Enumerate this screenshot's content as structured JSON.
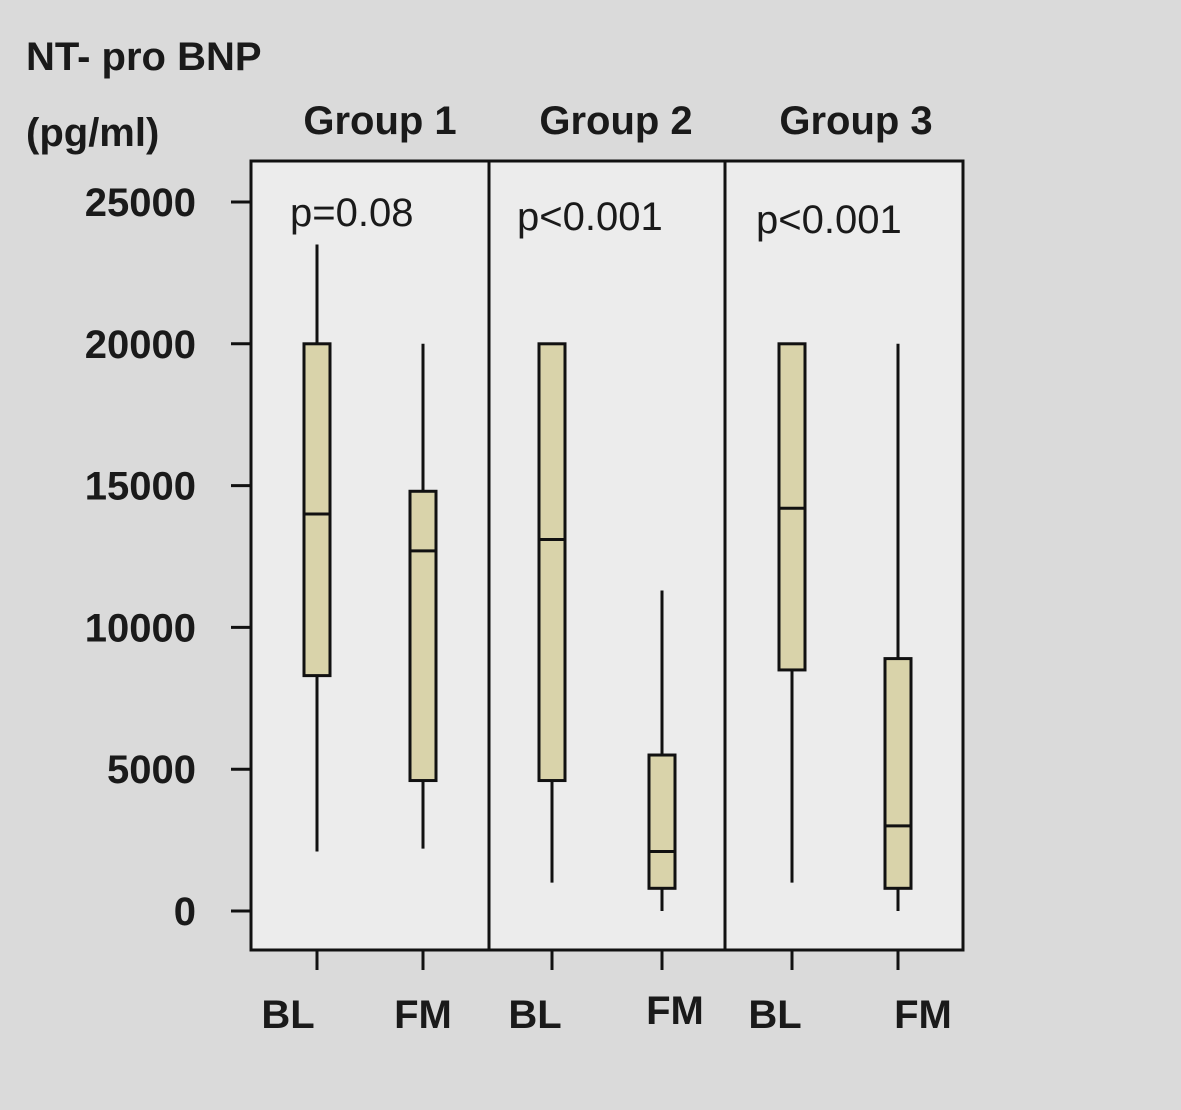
{
  "chart_data": {
    "type": "box",
    "ylabel_lines": [
      "NT- pro BNP",
      "(pg/ml)"
    ],
    "ylim": [
      -500,
      26000
    ],
    "yticks": [
      0,
      5000,
      10000,
      15000,
      20000,
      25000
    ],
    "ytick_labels": [
      "0",
      "5000",
      "10000",
      "15000",
      "20000",
      "25000"
    ],
    "grid": false,
    "legend": "none",
    "colors": {
      "box_fill": "#d9d3aa",
      "panel_bg": "#ececec",
      "page_bg": "#dadada",
      "stroke": "#111111"
    },
    "groups": [
      {
        "name": "Group 1",
        "p_value": "p=0.08",
        "boxes": [
          {
            "category": "BL",
            "min": 2100,
            "q1": 8300,
            "median": 14000,
            "q3": 20000,
            "max": 23500
          },
          {
            "category": "FM",
            "min": 2200,
            "q1": 4600,
            "median": 12700,
            "q3": 14800,
            "max": 20000
          }
        ]
      },
      {
        "name": "Group 2",
        "p_value": "p<0.001",
        "boxes": [
          {
            "category": "BL",
            "min": 1000,
            "q1": 4600,
            "median": 13100,
            "q3": 20000,
            "max": 20000
          },
          {
            "category": "FM",
            "min": 0,
            "q1": 800,
            "median": 2100,
            "q3": 5500,
            "max": 11300
          }
        ]
      },
      {
        "name": "Group 3",
        "p_value": "p<0.001",
        "boxes": [
          {
            "category": "BL",
            "min": 1000,
            "q1": 8500,
            "median": 14200,
            "q3": 20000,
            "max": 20000
          },
          {
            "category": "FM",
            "min": 0,
            "q1": 800,
            "median": 3000,
            "q3": 8900,
            "max": 20000
          }
        ]
      }
    ]
  }
}
